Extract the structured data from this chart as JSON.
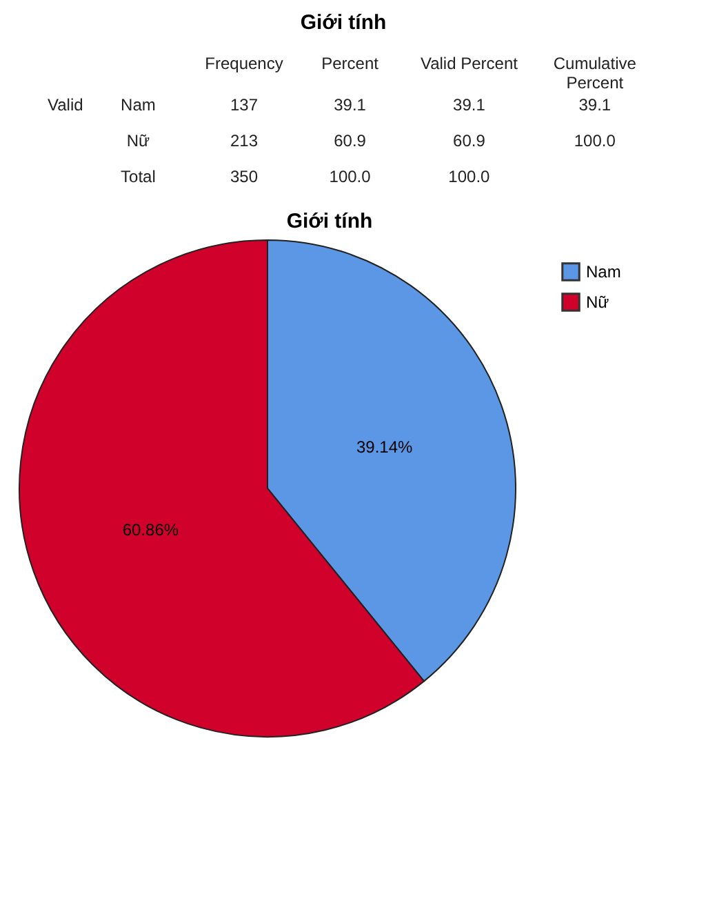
{
  "chart_data": [
    {
      "type": "other",
      "title": "Giới tính",
      "annotations": [
        "Frequency",
        "Percent",
        "Valid Percent",
        "Cumulative Percent",
        "Valid",
        "Nam",
        "137",
        "39.1",
        "39.1",
        "39.1",
        "Nữ",
        "213",
        "60.9",
        "60.9",
        "100.0",
        "Total",
        "350",
        "100.0",
        "100.0"
      ]
    },
    {
      "type": "pie",
      "title": "Giới tính",
      "categories": [
        "Nam",
        "Nữ"
      ],
      "values": [
        39.14,
        60.86
      ],
      "value_labels": [
        "39.14%",
        "60.86%"
      ],
      "colors": [
        "#5b97e4",
        "#d0022c"
      ],
      "legend": "top right"
    }
  ]
}
